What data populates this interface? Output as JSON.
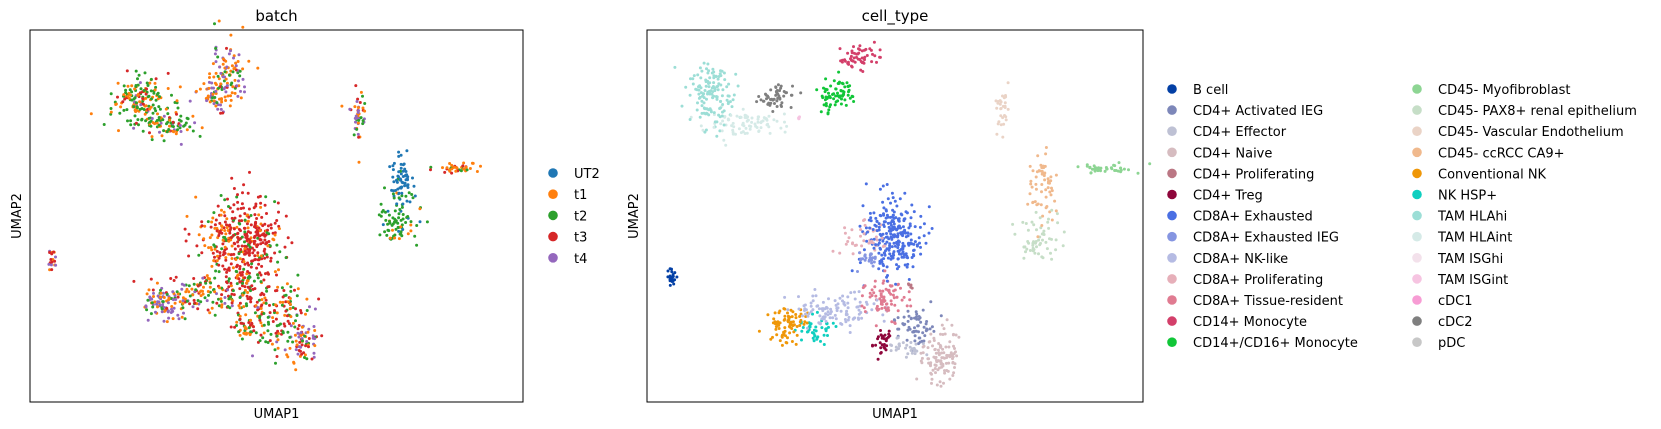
{
  "chart_data": [
    {
      "type": "scatter",
      "title": "batch",
      "xlabel": "UMAP1",
      "ylabel": "UMAP2",
      "grid": false,
      "legend_placement": "right",
      "ticks": "none",
      "series": [
        {
          "name": "UT2",
          "color": "#1f77b4"
        },
        {
          "name": "t1",
          "color": "#ff7f0e"
        },
        {
          "name": "t2",
          "color": "#2ca02c"
        },
        {
          "name": "t3",
          "color": "#d62728"
        },
        {
          "name": "t4",
          "color": "#9467bd"
        }
      ]
    },
    {
      "type": "scatter",
      "title": "cell_type",
      "xlabel": "UMAP1",
      "ylabel": "UMAP2",
      "grid": false,
      "legend_placement": "right",
      "ticks": "none",
      "series": [
        {
          "name": "B cell",
          "color": "#023fa5"
        },
        {
          "name": "CD4+ Activated IEG",
          "color": "#7d87b9"
        },
        {
          "name": "CD4+ Effector",
          "color": "#bec1d4"
        },
        {
          "name": "CD4+ Naive",
          "color": "#d6bcc0"
        },
        {
          "name": "CD4+ Proliferating",
          "color": "#bb7784"
        },
        {
          "name": "CD4+ Treg",
          "color": "#8e063b"
        },
        {
          "name": "CD8A+ Exhausted",
          "color": "#4a6fe3"
        },
        {
          "name": "CD8A+ Exhausted IEG",
          "color": "#8595e1"
        },
        {
          "name": "CD8A+ NK-like",
          "color": "#b5bbe3"
        },
        {
          "name": "CD8A+ Proliferating",
          "color": "#e6afb9"
        },
        {
          "name": "CD8A+ Tissue-resident",
          "color": "#e07b91"
        },
        {
          "name": "CD14+ Monocyte",
          "color": "#d33f6a"
        },
        {
          "name": "CD14+/CD16+ Monocyte",
          "color": "#11c638"
        },
        {
          "name": "CD45- Myofibroblast",
          "color": "#8dd593"
        },
        {
          "name": "CD45- PAX8+ renal epithelium",
          "color": "#c6dec7"
        },
        {
          "name": "CD45- Vascular Endothelium",
          "color": "#ead3c6"
        },
        {
          "name": "CD45- ccRCC CA9+",
          "color": "#f0b98d"
        },
        {
          "name": "Conventional NK",
          "color": "#ef9708"
        },
        {
          "name": "NK HSP+",
          "color": "#0fcfc0"
        },
        {
          "name": "TAM HLAhi",
          "color": "#9cded6"
        },
        {
          "name": "TAM HLAint",
          "color": "#d5eae7"
        },
        {
          "name": "TAM ISGhi",
          "color": "#f3e1eb"
        },
        {
          "name": "TAM ISGint",
          "color": "#f6c4e1"
        },
        {
          "name": "cDC1",
          "color": "#f79cd4"
        },
        {
          "name": "cDC2",
          "color": "#7f7f7f"
        },
        {
          "name": "pDC",
          "color": "#c7c7c7"
        }
      ]
    }
  ]
}
